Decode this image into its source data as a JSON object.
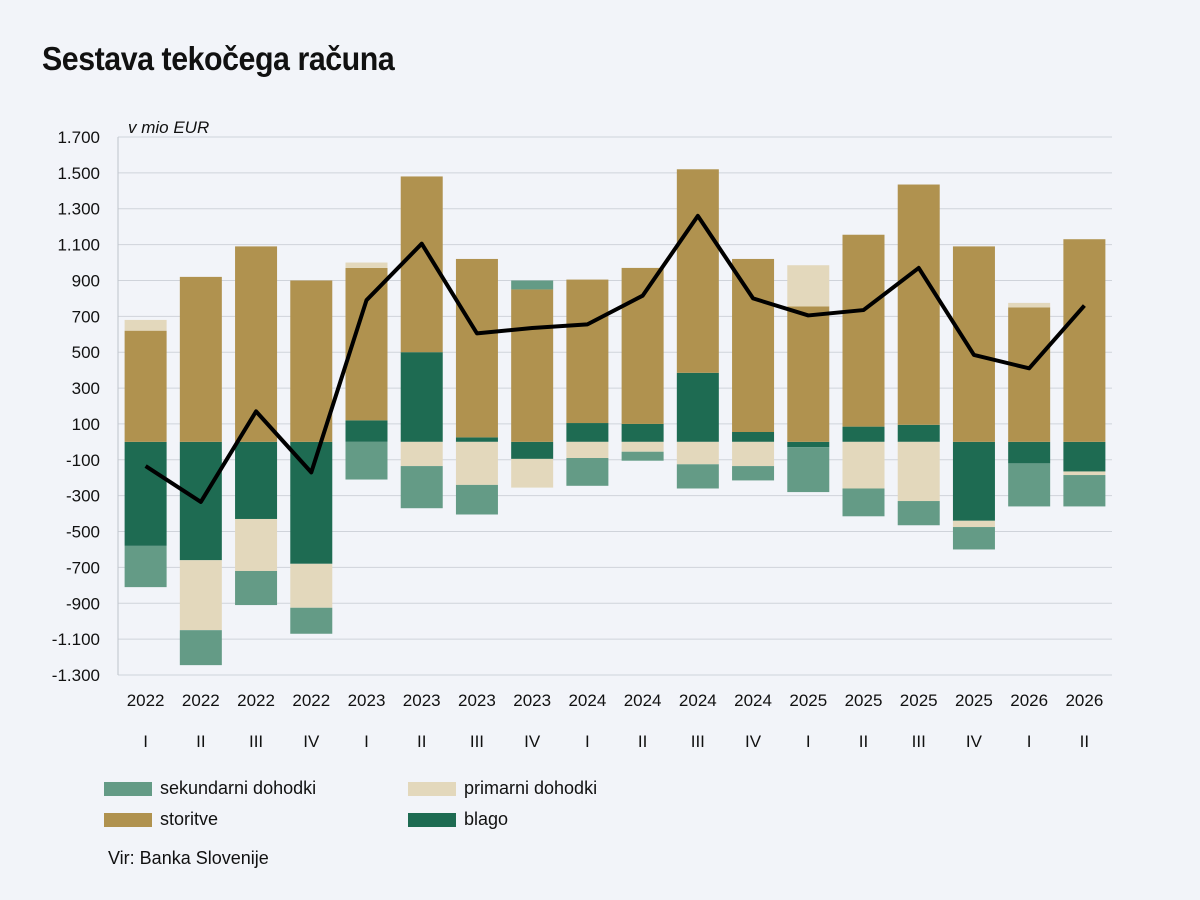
{
  "colors": {
    "background": "#f2f4f9",
    "blago": "#1e6b52",
    "storitve": "#b0924f",
    "primarni": "#e3d8bc",
    "sekundarni": "#649b86",
    "line": "#000000",
    "grid": "#cfd3da"
  },
  "chart_data": {
    "type": "bar",
    "stacked": true,
    "title": "Sestava tekočega računa",
    "unit": "v mio EUR",
    "ylim": [
      -1300,
      1700
    ],
    "yticks": [
      1700,
      1500,
      1300,
      1100,
      900,
      700,
      500,
      300,
      100,
      -100,
      -300,
      -500,
      -700,
      -900,
      -1100,
      -1300
    ],
    "ytick_labels": [
      "1.700",
      "1.500",
      "1.300",
      "1.100",
      "900",
      "700",
      "500",
      "300",
      "100",
      "-100",
      "-300",
      "-500",
      "-700",
      "-900",
      "-1.100",
      "-1.300"
    ],
    "grid": true,
    "categories_year": [
      "2022",
      "2022",
      "2022",
      "2022",
      "2023",
      "2023",
      "2023",
      "2023",
      "2024",
      "2024",
      "2024",
      "2024",
      "2025",
      "2025",
      "2025",
      "2025",
      "2026",
      "2026"
    ],
    "categories_quarter": [
      "I",
      "II",
      "III",
      "IV",
      "I",
      "II",
      "III",
      "IV",
      "I",
      "II",
      "III",
      "IV",
      "I",
      "II",
      "III",
      "IV",
      "I",
      "II"
    ],
    "series": [
      {
        "name": "blago",
        "key": "blago",
        "values": [
          -580,
          -660,
          -430,
          -680,
          120,
          500,
          25,
          -95,
          105,
          100,
          385,
          55,
          -30,
          85,
          95,
          -440,
          -120,
          -165
        ]
      },
      {
        "name": "storitve",
        "key": "storitve",
        "values": [
          620,
          920,
          1090,
          900,
          850,
          980,
          995,
          850,
          800,
          870,
          1135,
          965,
          755,
          1070,
          1340,
          1090,
          750,
          1130
        ]
      },
      {
        "name": "primarni dohodki",
        "key": "primarni",
        "values": [
          60,
          -390,
          -290,
          -245,
          30,
          -135,
          -240,
          -160,
          -90,
          -55,
          -125,
          -135,
          230,
          -260,
          -330,
          -35,
          25,
          -20
        ]
      },
      {
        "name": "sekundarni dohodki",
        "key": "sekundarni",
        "values": [
          -230,
          -195,
          -190,
          -145,
          -210,
          -235,
          -165,
          50,
          -155,
          -50,
          -135,
          -80,
          -250,
          -155,
          -135,
          -125,
          -240,
          -175
        ]
      }
    ],
    "line_series": {
      "values": [
        -135,
        -335,
        170,
        -170,
        790,
        1105,
        605,
        635,
        655,
        815,
        1260,
        800,
        705,
        735,
        970,
        485,
        410,
        760
      ]
    },
    "legend": {
      "placement": "bottom-left",
      "entries": [
        "sekundarni dohodki",
        "primarni dohodki",
        "storitve",
        "blago"
      ]
    },
    "source": "Vir: Banka Slovenije"
  }
}
